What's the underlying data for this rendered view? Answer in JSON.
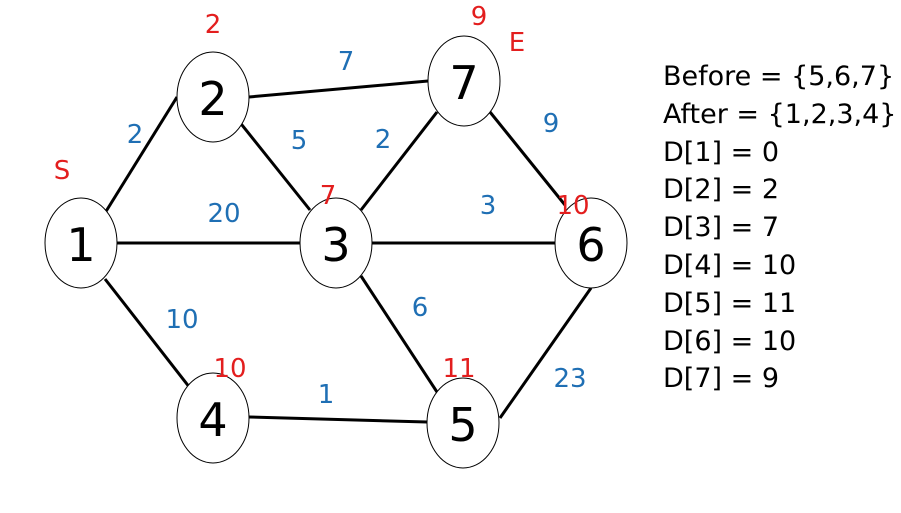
{
  "graph": {
    "colors": {
      "node_stroke": "#000000",
      "edge": "#000000",
      "weight": "#1f6fb4",
      "distance": "#e31e1e",
      "marker": "#e31e1e"
    },
    "nodes": [
      {
        "id": "1",
        "label": "1",
        "dist": ""
      },
      {
        "id": "2",
        "label": "2",
        "dist": "2"
      },
      {
        "id": "3",
        "label": "3",
        "dist": "7"
      },
      {
        "id": "4",
        "label": "4",
        "dist": "10"
      },
      {
        "id": "5",
        "label": "5",
        "dist": "11"
      },
      {
        "id": "6",
        "label": "6",
        "dist": "10"
      },
      {
        "id": "7",
        "label": "7",
        "dist": "9"
      }
    ],
    "markers": [
      {
        "node": "1",
        "text": "S"
      },
      {
        "node": "7",
        "text": "E"
      }
    ],
    "edges": [
      {
        "from": "1",
        "to": "2",
        "weight": "2"
      },
      {
        "from": "1",
        "to": "3",
        "weight": "20"
      },
      {
        "from": "1",
        "to": "4",
        "weight": "10"
      },
      {
        "from": "2",
        "to": "7",
        "weight": "7"
      },
      {
        "from": "2",
        "to": "3",
        "weight": "5"
      },
      {
        "from": "3",
        "to": "7",
        "weight": "2"
      },
      {
        "from": "3",
        "to": "6",
        "weight": "3"
      },
      {
        "from": "3",
        "to": "5",
        "weight": "6"
      },
      {
        "from": "4",
        "to": "5",
        "weight": "1"
      },
      {
        "from": "7",
        "to": "6",
        "weight": "9"
      },
      {
        "from": "6",
        "to": "5",
        "weight": "23"
      }
    ]
  },
  "info": {
    "lines": [
      "Before = {5,6,7}",
      "After = {1,2,3,4}",
      "D[1] = 0",
      "D[2] = 2",
      "D[3] = 7",
      "D[4] = 10",
      "D[5] = 11",
      "D[6] = 10",
      "D[7] = 9"
    ]
  }
}
